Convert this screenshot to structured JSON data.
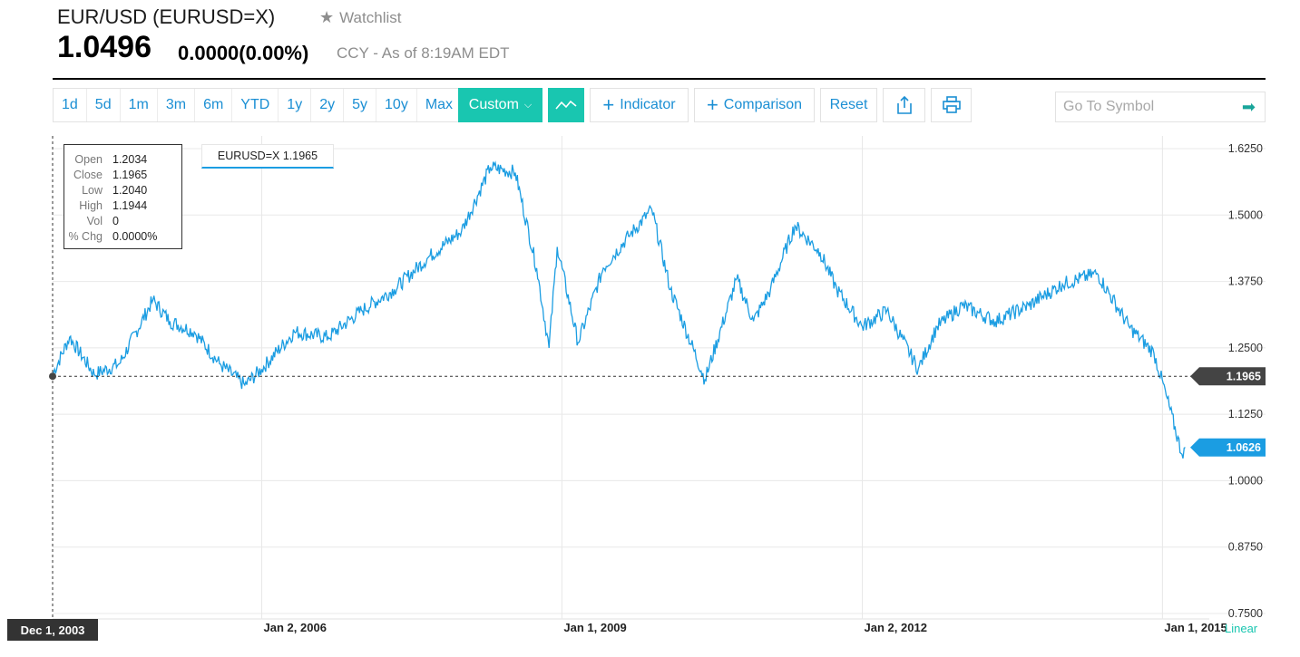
{
  "header": {
    "title": "EUR/USD (EURUSD=X)",
    "watchlist_label": "Watchlist",
    "price": "1.0496",
    "change": "0.0000(0.00%)",
    "as_of": "CCY - As of 8:19AM EDT"
  },
  "toolbar": {
    "ranges": [
      "1d",
      "5d",
      "1m",
      "3m",
      "6m",
      "YTD",
      "1y",
      "2y",
      "5y",
      "10y",
      "Max"
    ],
    "custom_label": "Custom",
    "indicator_label": "Indicator",
    "comparison_label": "Comparison",
    "reset_label": "Reset",
    "symbol_placeholder": "Go To Symbol"
  },
  "tooltip": {
    "rows": [
      {
        "k": "Open",
        "v": "1.2034"
      },
      {
        "k": "Close",
        "v": "1.1965"
      },
      {
        "k": "Low",
        "v": "1.2040"
      },
      {
        "k": "High",
        "v": "1.1944"
      },
      {
        "k": "Vol",
        "v": "0"
      },
      {
        "k": "% Chg",
        "v": "0.0000%"
      }
    ]
  },
  "legend_label": "EURUSD=X 1.1965",
  "crosshair_date": "Dec 1, 2003",
  "scale_label": "Linear",
  "colors": {
    "accent": "#19c6b0",
    "line": "#1b9de2",
    "link": "#1b8fd4"
  },
  "chart_data": {
    "type": "line",
    "series": [
      {
        "name": "EURUSD=X",
        "x": [
          "2003-12-01",
          "2004-02-01",
          "2004-05-01",
          "2004-08-01",
          "2004-12-01",
          "2005-02-01",
          "2005-05-01",
          "2005-08-01",
          "2005-11-01",
          "2006-01-02",
          "2006-05-01",
          "2006-09-01",
          "2007-01-01",
          "2007-05-01",
          "2007-09-01",
          "2008-01-01",
          "2008-04-15",
          "2008-07-15",
          "2008-10-01",
          "2008-11-15",
          "2008-12-15",
          "2009-03-01",
          "2009-06-01",
          "2009-09-01",
          "2009-11-25",
          "2010-02-01",
          "2010-06-07",
          "2010-10-01",
          "2010-12-01",
          "2011-02-01",
          "2011-05-01",
          "2011-08-01",
          "2011-10-01",
          "2012-01-02",
          "2012-04-01",
          "2012-07-24",
          "2012-10-01",
          "2013-01-01",
          "2013-05-01",
          "2013-09-01",
          "2014-01-01",
          "2014-05-08",
          "2014-09-01",
          "2014-12-01",
          "2015-01-15",
          "2015-03-13",
          "2015-03-25"
        ],
        "y": [
          1.2,
          1.27,
          1.2,
          1.22,
          1.34,
          1.3,
          1.28,
          1.22,
          1.18,
          1.21,
          1.28,
          1.27,
          1.32,
          1.36,
          1.42,
          1.47,
          1.59,
          1.58,
          1.4,
          1.25,
          1.44,
          1.26,
          1.4,
          1.46,
          1.51,
          1.36,
          1.19,
          1.38,
          1.3,
          1.36,
          1.48,
          1.43,
          1.36,
          1.29,
          1.32,
          1.21,
          1.29,
          1.33,
          1.3,
          1.33,
          1.37,
          1.39,
          1.29,
          1.24,
          1.16,
          1.05,
          1.0626
        ]
      }
    ],
    "xticks": [
      "Dec 1, 2003",
      "Jan 2, 2006",
      "Jan 1, 2009",
      "Jan 2, 2012",
      "Jan 1, 2015"
    ],
    "yticks": [
      "0.7500",
      "0.8750",
      "1.0000",
      "1.1250",
      "1.2500",
      "1.3750",
      "1.5000",
      "1.6250"
    ],
    "ylim": [
      0.75,
      1.625
    ],
    "crosshair_value": "1.1965",
    "last_value": "1.0626",
    "grid": true
  }
}
